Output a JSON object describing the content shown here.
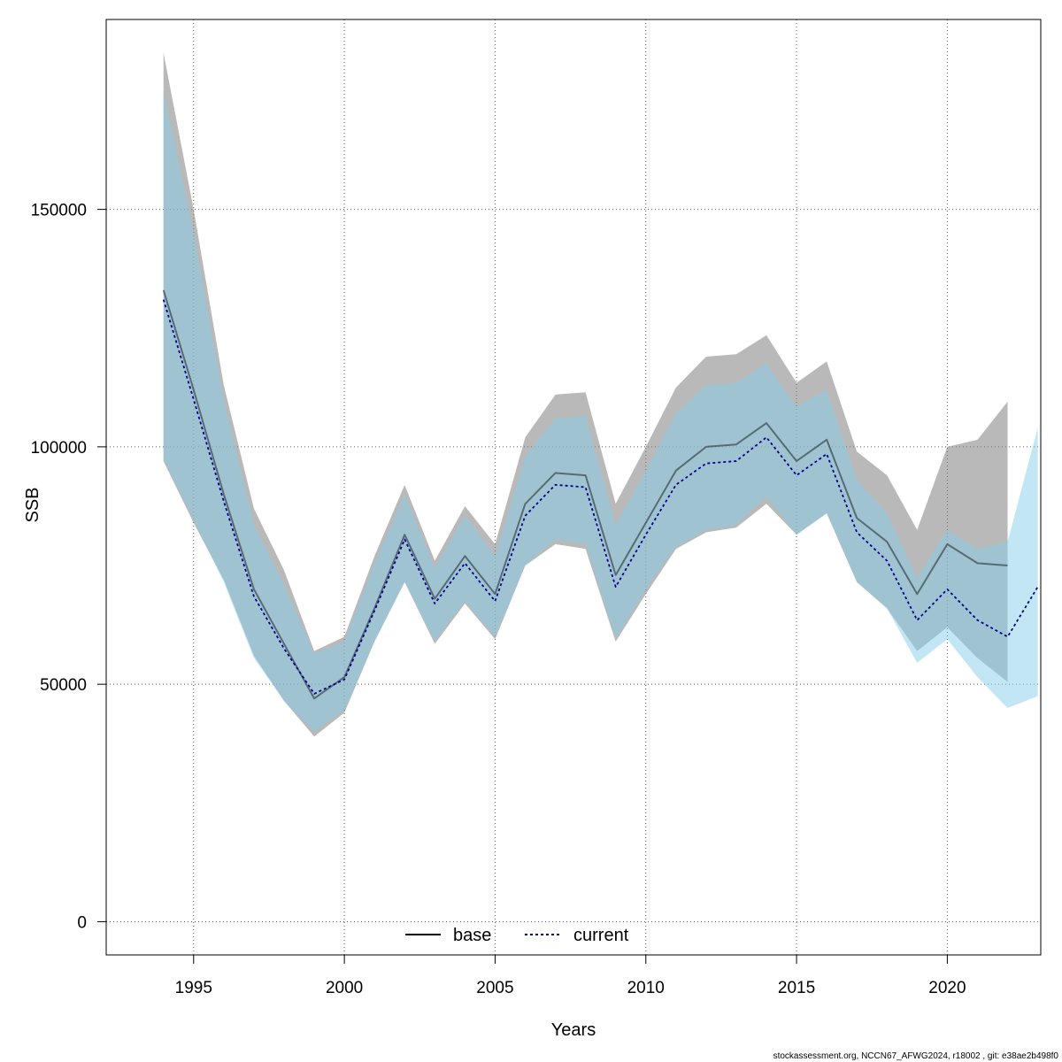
{
  "chart_data": {
    "type": "line",
    "xlabel": "Years",
    "ylabel": "SSB",
    "xlim": [
      1992.1,
      2023.1
    ],
    "ylim": [
      -7000,
      190000
    ],
    "x_ticks": [
      1995,
      2000,
      2005,
      2010,
      2015,
      2020
    ],
    "y_ticks": [
      0,
      50000,
      100000,
      150000
    ],
    "grid": true,
    "legend_position": "bottom",
    "series": [
      {
        "name": "base",
        "line_color": "#000000",
        "line_style": "solid",
        "band_color": "#808080",
        "x": [
          1994,
          1995,
          1996,
          1997,
          1998,
          1999,
          2000,
          2001,
          2002,
          2003,
          2004,
          2005,
          2006,
          2007,
          2008,
          2009,
          2010,
          2011,
          2012,
          2013,
          2014,
          2015,
          2016,
          2017,
          2018,
          2019,
          2020,
          2021,
          2022
        ],
        "values": [
          133000,
          112000,
          90000,
          70000,
          58500,
          47000,
          51500,
          66000,
          81500,
          68000,
          77000,
          69000,
          88000,
          94500,
          94000,
          73000,
          84000,
          95000,
          100000,
          100500,
          105000,
          97000,
          101500,
          85000,
          80000,
          69000,
          79500,
          75500,
          75000
        ],
        "lower": [
          97000,
          84000,
          72000,
          56000,
          46500,
          39000,
          44000,
          59000,
          71500,
          58500,
          67000,
          59500,
          75000,
          79500,
          78500,
          59000,
          69000,
          78500,
          82000,
          83000,
          88000,
          81500,
          86000,
          71500,
          66000,
          57000,
          62000,
          55500,
          50500
        ],
        "upper": [
          183000,
          150000,
          113000,
          87000,
          74000,
          57000,
          60000,
          77000,
          92000,
          76000,
          87500,
          79500,
          102000,
          111000,
          111500,
          88000,
          100000,
          112500,
          119000,
          119500,
          123500,
          113500,
          118000,
          99000,
          94000,
          82500,
          100000,
          101500,
          109500
        ]
      },
      {
        "name": "current",
        "line_color": "#00008b",
        "line_style": "dotted",
        "band_color": "#87ceeb",
        "x": [
          1994,
          1995,
          1996,
          1997,
          1998,
          1999,
          2000,
          2001,
          2002,
          2003,
          2004,
          2005,
          2006,
          2007,
          2008,
          2009,
          2010,
          2011,
          2012,
          2013,
          2014,
          2015,
          2016,
          2017,
          2018,
          2019,
          2020,
          2021,
          2022,
          2023
        ],
        "values": [
          131000,
          110000,
          88500,
          68500,
          57500,
          48000,
          51000,
          65500,
          80500,
          67000,
          75500,
          67500,
          85500,
          92000,
          91500,
          70500,
          81500,
          92000,
          96500,
          97000,
          102000,
          94000,
          98500,
          82000,
          76000,
          63500,
          70000,
          63500,
          60000,
          70500
        ],
        "lower": [
          97500,
          84500,
          71500,
          55500,
          46500,
          40000,
          44500,
          59000,
          71500,
          59000,
          67500,
          60000,
          75000,
          80500,
          79500,
          59500,
          70000,
          79000,
          82500,
          83500,
          89500,
          81500,
          86000,
          71500,
          66000,
          54500,
          59500,
          51500,
          45000,
          47500
        ],
        "upper": [
          175000,
          145000,
          110000,
          83500,
          71000,
          56500,
          59000,
          75500,
          90000,
          74500,
          85500,
          77000,
          98000,
          106000,
          106500,
          83500,
          95000,
          107000,
          113000,
          113500,
          117500,
          108500,
          112000,
          93000,
          86000,
          72500,
          82500,
          78500,
          80000,
          104000
        ]
      }
    ]
  },
  "footer": "stockassessment.org, NCCN67_AFWG2024, r18002 , git: e38ae2b498f0"
}
